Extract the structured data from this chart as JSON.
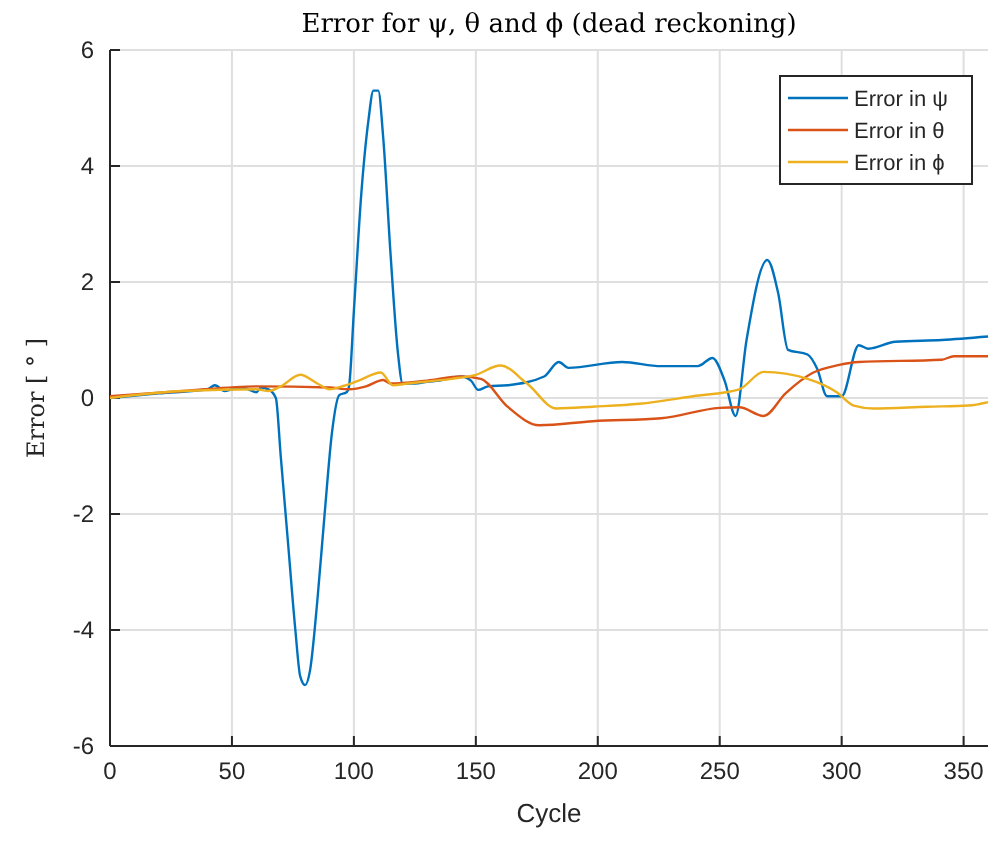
{
  "chart_data": {
    "type": "line",
    "title": "Error for ψ, θ and ϕ (dead reckoning)",
    "xlabel": "Cycle",
    "ylabel": "Error [ ° ]",
    "xlim": [
      0,
      360
    ],
    "xticks": [
      0,
      50,
      100,
      150,
      200,
      250,
      300,
      350
    ],
    "ylim": [
      -6,
      6
    ],
    "yticks": [
      -6,
      -4,
      -2,
      0,
      2,
      4,
      6
    ],
    "grid": true,
    "legend": "top right",
    "series": [
      {
        "name": "Error in ψ",
        "color": "#0072bd",
        "x": [
          0,
          20,
          40,
          43,
          47,
          50,
          55,
          60,
          62,
          65,
          68,
          70,
          73,
          76,
          78,
          80,
          82,
          85,
          88,
          91,
          94,
          97,
          98,
          100,
          103,
          106,
          108,
          110,
          112,
          115,
          118,
          120,
          125,
          130,
          135,
          144,
          148,
          151,
          155,
          163,
          178,
          184,
          188,
          210,
          226,
          241,
          247,
          252,
          256.5,
          261,
          269.5,
          274,
          278,
          286,
          290,
          294,
          300,
          307,
          311,
          322,
          341,
          360
        ],
        "values": [
          0,
          0.08,
          0.15,
          0.22,
          0.12,
          0.15,
          0.17,
          0.1,
          0.18,
          0.15,
          0,
          -1,
          -2.5,
          -4,
          -4.8,
          -4.95,
          -4.7,
          -3.5,
          -2,
          -0.6,
          0.05,
          0.1,
          0.2,
          1.5,
          3.5,
          4.8,
          5.3,
          5.3,
          4.5,
          2.5,
          0.8,
          0.25,
          0.25,
          0.28,
          0.3,
          0.37,
          0.3,
          0.14,
          0.2,
          0.22,
          0.37,
          0.62,
          0.52,
          0.62,
          0.55,
          0.55,
          0.69,
          0.3,
          -0.31,
          1,
          2.38,
          1.8,
          0.83,
          0.75,
          0.5,
          0.03,
          0.03,
          0.91,
          0.85,
          0.97,
          1,
          1.06
        ]
      },
      {
        "name": "Error in θ",
        "color": "#d95319",
        "x": [
          0,
          30,
          60,
          90,
          98,
          105,
          112,
          115,
          130,
          144,
          152,
          163,
          176,
          198,
          226,
          250,
          258,
          268,
          277,
          288,
          299,
          307,
          341,
          346,
          360
        ],
        "values": [
          0.03,
          0.12,
          0.2,
          0.18,
          0.15,
          0.2,
          0.31,
          0.25,
          0.3,
          0.37,
          0.33,
          -0.15,
          -0.47,
          -0.4,
          -0.35,
          -0.17,
          -0.16,
          -0.31,
          0.08,
          0.43,
          0.57,
          0.62,
          0.66,
          0.72,
          0.72
        ]
      },
      {
        "name": "Error in ϕ",
        "color": "#edb120",
        "x": [
          0,
          30,
          60,
          65,
          70,
          78,
          85,
          90,
          95,
          102,
          111,
          116,
          122,
          140,
          150,
          160,
          171,
          183,
          198,
          217,
          239,
          258,
          268,
          286,
          298,
          305,
          313,
          335,
          352,
          360
        ],
        "values": [
          0,
          0.12,
          0.15,
          0.12,
          0.2,
          0.4,
          0.25,
          0.15,
          0.2,
          0.3,
          0.44,
          0.22,
          0.25,
          0.33,
          0.4,
          0.56,
          0.25,
          -0.18,
          -0.15,
          -0.1,
          0.03,
          0.15,
          0.45,
          0.33,
          0.1,
          -0.13,
          -0.18,
          -0.15,
          -0.13,
          -0.07
        ]
      }
    ]
  }
}
